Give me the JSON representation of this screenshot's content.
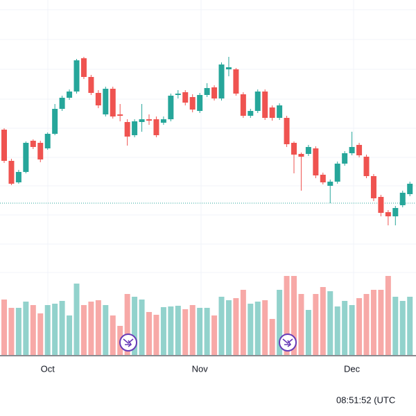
{
  "chart_data": {
    "type": "candlestick",
    "categories": [
      null,
      null,
      null,
      null,
      null,
      null,
      "Oct",
      null,
      null,
      null,
      null,
      null,
      null,
      null,
      null,
      null,
      null,
      null,
      null,
      null,
      null,
      null,
      null,
      null,
      null,
      null,
      null,
      "Nov",
      null,
      null,
      null,
      null,
      null,
      null,
      null,
      null,
      null,
      null,
      null,
      null,
      null,
      null,
      null,
      null,
      null,
      null,
      null,
      null,
      "Dec",
      null,
      null,
      null,
      null,
      null,
      null,
      null,
      null
    ],
    "open": [
      213,
      168,
      137,
      152,
      197,
      194,
      186,
      207,
      243,
      259,
      268,
      316,
      289,
      266,
      235,
      272,
      235,
      224,
      205,
      224,
      228,
      228,
      223,
      228,
      263,
      267,
      260,
      240,
      263,
      274,
      258,
      300,
      300,
      264,
      233,
      240,
      268,
      245,
      230,
      230,
      194,
      178,
      178,
      186,
      148,
      132,
      138,
      164,
      179,
      191,
      174,
      146,
      116,
      94,
      88,
      104,
      120
    ],
    "high": [
      215,
      171,
      155,
      196,
      199,
      197,
      209,
      250,
      262,
      271,
      315,
      318,
      292,
      270,
      275,
      275,
      250,
      228,
      228,
      250,
      235,
      232,
      232,
      265,
      270,
      270,
      264,
      266,
      280,
      277,
      310,
      318,
      302,
      267,
      243,
      271,
      271,
      248,
      251,
      233,
      196,
      180,
      191,
      189,
      151,
      141,
      167,
      182,
      210,
      194,
      177,
      149,
      119,
      97,
      103,
      125,
      138
    ],
    "low": [
      165,
      133,
      135,
      150,
      185,
      166,
      184,
      205,
      240,
      256,
      265,
      286,
      263,
      244,
      232,
      229,
      225,
      190,
      202,
      210,
      220,
      202,
      220,
      225,
      258,
      248,
      238,
      237,
      260,
      255,
      255,
      290,
      262,
      230,
      230,
      237,
      227,
      226,
      227,
      188,
      150,
      125,
      175,
      143,
      134,
      107,
      135,
      161,
      176,
      173,
      143,
      110,
      88,
      75,
      75,
      101,
      117
    ],
    "close": [
      168,
      135,
      152,
      194,
      188,
      170,
      207,
      243,
      259,
      268,
      313,
      289,
      266,
      248,
      272,
      232,
      233,
      203,
      225,
      228,
      226,
      205,
      228,
      262,
      265,
      252,
      242,
      263,
      273,
      258,
      307,
      303,
      265,
      233,
      240,
      268,
      230,
      230,
      248,
      192,
      177,
      174,
      188,
      147,
      137,
      138,
      164,
      179,
      188,
      176,
      146,
      114,
      93,
      88,
      100,
      122,
      135
    ],
    "volume": [
      80,
      68,
      68,
      77,
      72,
      60,
      72,
      74,
      78,
      57,
      103,
      72,
      77,
      79,
      72,
      57,
      42,
      88,
      84,
      80,
      62,
      58,
      69,
      70,
      71,
      66,
      72,
      68,
      68,
      57,
      84,
      79,
      82,
      94,
      74,
      77,
      79,
      52,
      94,
      114,
      114,
      88,
      65,
      88,
      98,
      92,
      70,
      78,
      72,
      82,
      88,
      94,
      94,
      114,
      84,
      78,
      84
    ],
    "up_color": "#26a69a",
    "down_color": "#ef5350",
    "ylim": [
      0,
      400
    ],
    "y2lim": [
      0,
      512
    ],
    "time": "08:51:52 (UTC"
  }
}
